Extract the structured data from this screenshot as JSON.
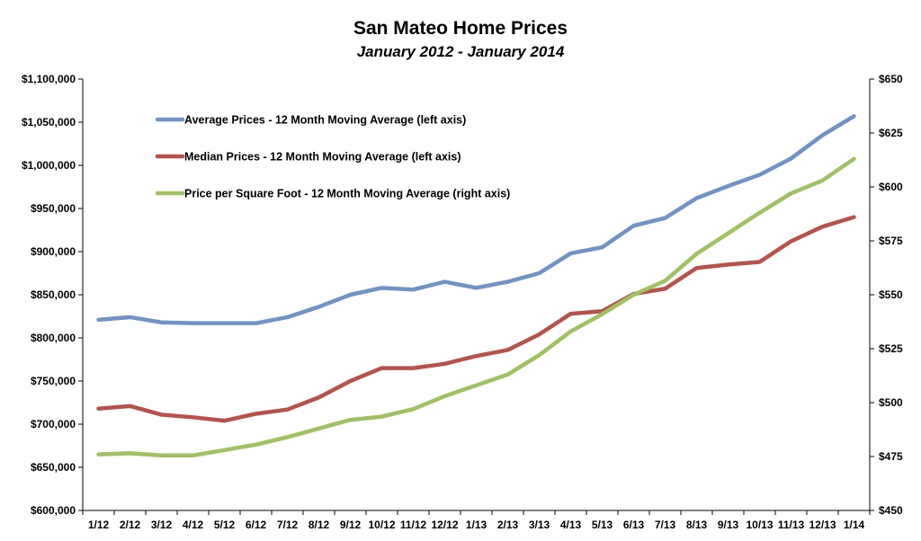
{
  "chart_data": {
    "type": "line",
    "title": "San Mateo Home Prices",
    "subtitle": "January 2012 - January 2014",
    "categories": [
      "1/12",
      "2/12",
      "3/12",
      "4/12",
      "5/12",
      "6/12",
      "7/12",
      "8/12",
      "9/12",
      "10/12",
      "11/12",
      "12/12",
      "1/13",
      "2/13",
      "3/13",
      "4/13",
      "5/13",
      "6/13",
      "7/13",
      "8/13",
      "9/13",
      "10/13",
      "11/13",
      "12/13",
      "1/14"
    ],
    "y_left": {
      "ylim": [
        600000,
        1100000
      ],
      "ticks": [
        600000,
        650000,
        700000,
        750000,
        800000,
        850000,
        900000,
        950000,
        1000000,
        1050000,
        1100000
      ],
      "tick_labels": [
        "$600,000",
        "$650,000",
        "$700,000",
        "$750,000",
        "$800,000",
        "$850,000",
        "$900,000",
        "$950,000",
        "$1,000,000",
        "$1,050,000",
        "$1,100,000"
      ]
    },
    "y_right": {
      "ylim": [
        450,
        650
      ],
      "ticks": [
        450,
        475,
        500,
        525,
        550,
        575,
        600,
        625,
        650
      ],
      "tick_labels": [
        "$450",
        "$475",
        "$500",
        "$525",
        "$550",
        "$575",
        "$600",
        "$625",
        "$650"
      ]
    },
    "grid": false,
    "legend_position": "top-left",
    "series": [
      {
        "name": "Average Prices - 12 Month Moving Average (left axis)",
        "axis": "left",
        "color": "#6f93c6",
        "values": [
          821000,
          824000,
          818000,
          817000,
          817000,
          817000,
          824000,
          836000,
          850000,
          858000,
          856000,
          865000,
          858000,
          865000,
          875000,
          898000,
          905000,
          930000,
          939000,
          962000,
          976000,
          989000,
          1008000,
          1035000,
          1057000
        ]
      },
      {
        "name": "Median Prices - 12 Month Moving Average (left axis)",
        "axis": "left",
        "color": "#b9514b",
        "values": [
          718000,
          721000,
          711000,
          708000,
          704000,
          712000,
          717000,
          731000,
          750000,
          765000,
          765000,
          770000,
          779000,
          786000,
          804000,
          828000,
          831000,
          851000,
          857000,
          881000,
          885000,
          888000,
          912000,
          929000,
          940000
        ]
      },
      {
        "name": "Price per Square Foot - 12 Month Moving Average (right axis)",
        "axis": "right",
        "color": "#9fc15f",
        "values": [
          476,
          476.5,
          475.5,
          475.5,
          478,
          480.5,
          484,
          488,
          492,
          493.5,
          497,
          503,
          508,
          513,
          522,
          533,
          541,
          550,
          556.5,
          569,
          578.5,
          588,
          597,
          603,
          613
        ]
      }
    ]
  }
}
